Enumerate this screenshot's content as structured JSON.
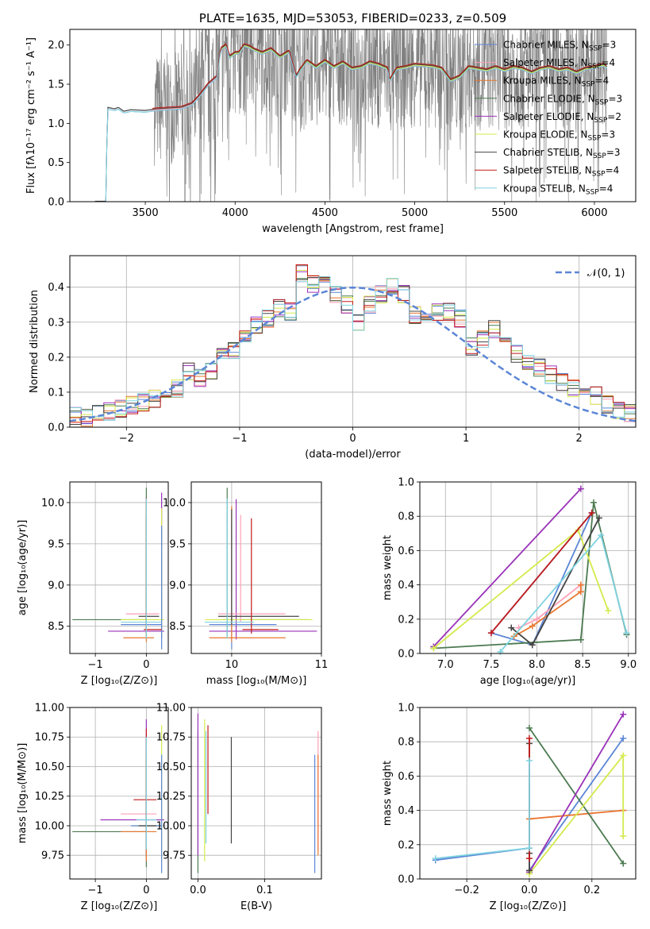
{
  "colors": {
    "chabrier_miles": "#5b86d6",
    "salpeter_miles": "#ff9fb4",
    "kroupa_miles": "#e8772e",
    "chabrier_elodie": "#4c7a50",
    "salpeter_elodie": "#9a32b8",
    "kroupa_elodie": "#d4ea4c",
    "chabrier_stelib": "#444444",
    "salpeter_stelib": "#c21a1a",
    "kroupa_stelib": "#7fd3e0",
    "spectrum": "#808080",
    "normal": "#5b86d6",
    "grid": "#b0b0b0"
  },
  "chart_data": [
    {
      "id": "spectrum",
      "type": "line",
      "title": "PLATE=1635, MJD=53053, FIBERID=0233, z=0.509",
      "xlabel": "wavelength [Angstrom, rest frame]",
      "ylabel": "Flux [fλ10⁻¹⁷ erg cm⁻² s⁻¹ A⁻¹]",
      "xlim": [
        3080,
        6230
      ],
      "ylim": [
        0,
        2.2
      ],
      "xticks": [
        "3500",
        "4000",
        "4500",
        "5000",
        "5500",
        "6000"
      ],
      "yticks": [
        "0.0",
        "0.5",
        "1.0",
        "1.5",
        "2.0"
      ],
      "grid": false,
      "legend_position": "upper-right",
      "legend": [
        {
          "label": "Chabrier MILES, N_SSP=3",
          "key": "chabrier_miles"
        },
        {
          "label": "Salpeter MILES, N_SSP=4",
          "key": "salpeter_miles"
        },
        {
          "label": "Kroupa MILES, N_SSP=4",
          "key": "kroupa_miles"
        },
        {
          "label": "Chabrier ELODIE, N_SSP=3",
          "key": "chabrier_elodie"
        },
        {
          "label": "Salpeter ELODIE, N_SSP=2",
          "key": "salpeter_elodie"
        },
        {
          "label": "Kroupa ELODIE, N_SSP=3",
          "key": "kroupa_elodie"
        },
        {
          "label": "Chabrier STELIB, N_SSP=3",
          "key": "chabrier_stelib"
        },
        {
          "label": "Salpeter STELIB, N_SSP=4",
          "key": "salpeter_stelib"
        },
        {
          "label": "Kroupa STELIB, N_SSP=4",
          "key": "kroupa_stelib"
        }
      ],
      "model_continuum": {
        "x": [
          3220,
          3280,
          3290,
          3330,
          3350,
          3380,
          3420,
          3500,
          3560,
          3700,
          3760,
          3800,
          3850,
          3900,
          3920,
          3950,
          3970,
          4000,
          4020,
          4050,
          4080,
          4100,
          4150,
          4200,
          4250,
          4300,
          4340,
          4360,
          4400,
          4450,
          4500,
          4550,
          4600,
          4650,
          4700,
          4750,
          4800,
          4850,
          4860,
          4900,
          4950,
          5000,
          5050,
          5100,
          5150,
          5200,
          5250,
          5300,
          5350,
          5400,
          5450,
          5500,
          5550,
          5600,
          5650,
          5700,
          5750,
          5800,
          5850,
          5900,
          5950,
          6000,
          6050,
          6070
        ],
        "y": [
          0,
          0,
          1.2,
          1.18,
          1.2,
          1.15,
          1.17,
          1.16,
          1.18,
          1.2,
          1.25,
          1.35,
          1.5,
          1.6,
          1.95,
          2.0,
          1.85,
          1.9,
          1.9,
          2.0,
          1.98,
          1.95,
          1.9,
          1.95,
          1.85,
          1.92,
          1.6,
          1.68,
          1.8,
          1.72,
          1.8,
          1.72,
          1.78,
          1.7,
          1.72,
          1.78,
          1.75,
          1.7,
          1.55,
          1.7,
          1.72,
          1.75,
          1.74,
          1.73,
          1.7,
          1.55,
          1.6,
          1.72,
          1.7,
          1.68,
          1.72,
          1.68,
          1.72,
          1.7,
          1.65,
          1.7,
          1.72,
          1.68,
          1.7,
          1.65,
          1.7,
          1.72,
          1.75,
          1.72
        ]
      }
    },
    {
      "id": "residuals",
      "type": "histogram",
      "xlabel": "(data-model)/error",
      "ylabel": "Normed distribution",
      "xlim": [
        -2.5,
        2.5
      ],
      "ylim": [
        0,
        0.49
      ],
      "xticks": [
        "−2",
        "−1",
        "0",
        "1",
        "2"
      ],
      "yticks": [
        "0.0",
        "0.1",
        "0.2",
        "0.3",
        "0.4"
      ],
      "grid": true,
      "legend_position": "upper-right",
      "normal_label": "𝒩(0, 1)",
      "bin_edges": [
        -2.5,
        -2.4,
        -2.3,
        -2.2,
        -2.1,
        -2.0,
        -1.9,
        -1.8,
        -1.7,
        -1.6,
        -1.5,
        -1.4,
        -1.3,
        -1.2,
        -1.1,
        -1.0,
        -0.9,
        -0.8,
        -0.7,
        -0.6,
        -0.5,
        -0.4,
        -0.3,
        -0.2,
        -0.1,
        0.0,
        0.1,
        0.2,
        0.3,
        0.4,
        0.5,
        0.6,
        0.7,
        0.8,
        0.9,
        1.0,
        1.1,
        1.2,
        1.3,
        1.4,
        1.5,
        1.6,
        1.7,
        1.8,
        1.9,
        2.0,
        2.1,
        2.2,
        2.3,
        2.4,
        2.5
      ],
      "base_density": [
        0.033,
        0.028,
        0.037,
        0.045,
        0.053,
        0.063,
        0.071,
        0.081,
        0.11,
        0.11,
        0.16,
        0.14,
        0.16,
        0.2,
        0.22,
        0.26,
        0.29,
        0.31,
        0.34,
        0.33,
        0.44,
        0.41,
        0.41,
        0.38,
        0.35,
        0.3,
        0.35,
        0.38,
        0.4,
        0.38,
        0.32,
        0.33,
        0.33,
        0.33,
        0.31,
        0.23,
        0.25,
        0.28,
        0.25,
        0.21,
        0.19,
        0.17,
        0.15,
        0.13,
        0.11,
        0.085,
        0.09,
        0.065,
        0.05,
        0.04
      ]
    },
    {
      "id": "age_vs_Z",
      "type": "scatter",
      "xlabel": "Z [log₁₀(Z/Z⊙)]",
      "ylabel": "age  [log₁₀(age/yr)]",
      "xlim": [
        -1.5,
        0.43
      ],
      "ylim": [
        8.17,
        10.25
      ],
      "xticks": [
        "−1",
        "0"
      ],
      "yticks": [
        "8.5",
        "9.0",
        "9.5",
        "10.0"
      ],
      "grid": true,
      "points": [
        {
          "key": "chabrier_elodie",
          "x": 0.0,
          "y": 8.58,
          "xerr": [
            1.45,
            0.0
          ],
          "yerr": [
            0.2,
            1.6
          ]
        },
        {
          "key": "salpeter_elodie",
          "x": 0.3,
          "y": 8.44,
          "xerr": [
            1.05,
            0.05
          ],
          "yerr": [
            0.08,
            1.68
          ]
        },
        {
          "key": "kroupa_elodie",
          "x": 0.3,
          "y": 8.58,
          "xerr": [
            0.8,
            0.05
          ],
          "yerr": [
            0.2,
            1.35
          ]
        },
        {
          "key": "chabrier_miles",
          "x": 0.3,
          "y": 8.52,
          "xerr": [
            0.8,
            0.0
          ],
          "yerr": [
            0.3,
            1.2
          ]
        },
        {
          "key": "salpeter_miles",
          "x": 0.0,
          "y": 8.65,
          "xerr": [
            0.4,
            0.25
          ],
          "yerr": [
            0.1,
            1.2
          ]
        },
        {
          "key": "kroupa_miles",
          "x": 0.0,
          "y": 8.36,
          "xerr": [
            0.45,
            0.15
          ],
          "yerr": [
            0.05,
            1.6
          ]
        },
        {
          "key": "chabrier_stelib",
          "x": 0.0,
          "y": 8.62,
          "xerr": [
            0.15,
            0.25
          ],
          "yerr": [
            0.1,
            1.2
          ]
        },
        {
          "key": "salpeter_stelib",
          "x": 0.0,
          "y": 8.46,
          "xerr": [
            0.05,
            0.3
          ],
          "yerr": [
            0.05,
            1.6
          ]
        },
        {
          "key": "kroupa_stelib",
          "x": 0.0,
          "y": 8.55,
          "xerr": [
            0.5,
            0.3
          ],
          "yerr": [
            0.2,
            1.5
          ]
        }
      ]
    },
    {
      "id": "age_vs_mass",
      "type": "scatter",
      "xlabel": "mass [log₁₀(M/M⊙)]",
      "ylabel": "",
      "xlim": [
        9.55,
        11.0
      ],
      "ylim": [
        8.17,
        10.25
      ],
      "xticks": [
        "10",
        "11"
      ],
      "yticks": [
        "8.5",
        "9.0",
        "9.5",
        "10.0"
      ],
      "grid": true,
      "points": [
        {
          "key": "chabrier_elodie",
          "x": 9.95,
          "y": 8.58,
          "xerr": [
            0.05,
            0.9
          ],
          "yerr": [
            0.2,
            1.6
          ]
        },
        {
          "key": "salpeter_elodie",
          "x": 10.05,
          "y": 8.44,
          "xerr": [
            0.3,
            0.9
          ],
          "yerr": [
            0.1,
            1.6
          ]
        },
        {
          "key": "kroupa_elodie",
          "x": 10.0,
          "y": 8.58,
          "xerr": [
            0.3,
            0.9
          ],
          "yerr": [
            0.2,
            1.3
          ]
        },
        {
          "key": "chabrier_miles",
          "x": 10.0,
          "y": 8.52,
          "xerr": [
            0.25,
            0.5
          ],
          "yerr": [
            0.3,
            1.25
          ]
        },
        {
          "key": "salpeter_miles",
          "x": 10.1,
          "y": 8.65,
          "xerr": [
            0.25,
            0.5
          ],
          "yerr": [
            0.1,
            1.2
          ]
        },
        {
          "key": "kroupa_miles",
          "x": 10.0,
          "y": 8.36,
          "xerr": [
            0.25,
            0.6
          ],
          "yerr": [
            0.05,
            1.6
          ]
        },
        {
          "key": "chabrier_stelib",
          "x": 10.0,
          "y": 8.62,
          "xerr": [
            0.15,
            0.75
          ],
          "yerr": [
            0.1,
            1.3
          ]
        },
        {
          "key": "salpeter_stelib",
          "x": 10.22,
          "y": 8.46,
          "xerr": [
            0.1,
            0.3
          ],
          "yerr": [
            0.05,
            1.35
          ]
        },
        {
          "key": "kroupa_stelib",
          "x": 9.95,
          "y": 8.55,
          "xerr": [
            0.25,
            0.3
          ],
          "yerr": [
            0.2,
            1.5
          ]
        }
      ]
    },
    {
      "id": "weight_vs_age",
      "type": "line",
      "xlabel": "age  [log₁₀(age/yr)]",
      "ylabel": "mass weight",
      "xlim": [
        6.72,
        9.08
      ],
      "ylim": [
        0,
        1.0
      ],
      "xticks": [
        "7.0",
        "7.5",
        "8.0",
        "8.5",
        "9.0"
      ],
      "yticks": [
        "0.0",
        "0.2",
        "0.4",
        "0.6",
        "0.8",
        "1.0"
      ],
      "grid": true,
      "series": [
        {
          "key": "chabrier_miles",
          "x": [
            8.6,
            7.5,
            7.95,
            8.6
          ],
          "y": [
            0.82,
            0.12,
            0.05,
            0.82
          ]
        },
        {
          "key": "salpeter_miles",
          "x": [
            7.8,
            8.0,
            8.48,
            8.48
          ],
          "y": [
            0.15,
            0.2,
            0.4,
            0.36
          ]
        },
        {
          "key": "kroupa_miles",
          "x": [
            7.75,
            7.95,
            8.48,
            8.48
          ],
          "y": [
            0.1,
            0.16,
            0.36,
            0.4
          ]
        },
        {
          "key": "chabrier_elodie",
          "x": [
            6.87,
            8.48,
            8.62,
            8.98
          ],
          "y": [
            0.03,
            0.08,
            0.88,
            0.11
          ]
        },
        {
          "key": "salpeter_elodie",
          "x": [
            6.87,
            8.48
          ],
          "y": [
            0.04,
            0.96
          ]
        },
        {
          "key": "kroupa_elodie",
          "x": [
            6.87,
            8.45,
            8.78
          ],
          "y": [
            0.03,
            0.72,
            0.25
          ]
        },
        {
          "key": "chabrier_stelib",
          "x": [
            7.72,
            7.95,
            8.68
          ],
          "y": [
            0.15,
            0.05,
            0.79
          ]
        },
        {
          "key": "salpeter_stelib",
          "x": [
            7.5,
            8.6
          ],
          "y": [
            0.12,
            0.82
          ]
        },
        {
          "key": "kroupa_stelib",
          "x": [
            7.6,
            8.7,
            8.98
          ],
          "y": [
            0.01,
            0.69,
            0.12
          ]
        }
      ]
    },
    {
      "id": "mass_vs_Z",
      "type": "scatter",
      "xlabel": "Z [log₁₀(Z/Z⊙)]",
      "ylabel": "mass [log₁₀(M/M⊙)]",
      "xlim": [
        -1.5,
        0.43
      ],
      "ylim": [
        9.55,
        11.0
      ],
      "xticks": [
        "−1",
        "0"
      ],
      "yticks": [
        "9.75",
        "10.00",
        "10.25",
        "10.50",
        "10.75",
        "11.00"
      ],
      "grid": true,
      "points": [
        {
          "key": "chabrier_elodie",
          "x": 0.0,
          "y": 9.95,
          "xerr": [
            1.45,
            0.0
          ],
          "yerr": [
            0.3,
            0.55
          ]
        },
        {
          "key": "salpeter_elodie",
          "x": 0.0,
          "y": 10.05,
          "xerr": [
            0.9,
            0.35
          ],
          "yerr": [
            0.3,
            0.85
          ]
        },
        {
          "key": "kroupa_elodie",
          "x": 0.3,
          "y": 10.0,
          "xerr": [
            0.6,
            0.0
          ],
          "yerr": [
            0.3,
            0.85
          ]
        },
        {
          "key": "chabrier_miles",
          "x": 0.3,
          "y": 10.0,
          "xerr": [
            0.6,
            0.0
          ],
          "yerr": [
            0.4,
            0.6
          ]
        },
        {
          "key": "salpeter_miles",
          "x": 0.0,
          "y": 10.1,
          "xerr": [
            0.5,
            0.2
          ],
          "yerr": [
            0.3,
            0.55
          ]
        },
        {
          "key": "kroupa_miles",
          "x": 0.0,
          "y": 9.95,
          "xerr": [
            0.5,
            0.2
          ],
          "yerr": [
            0.25,
            0.6
          ]
        },
        {
          "key": "chabrier_stelib",
          "x": 0.0,
          "y": 10.0,
          "xerr": [
            0.15,
            0.2
          ],
          "yerr": [
            0.2,
            0.75
          ]
        },
        {
          "key": "salpeter_stelib",
          "x": 0.0,
          "y": 10.22,
          "xerr": [
            0.25,
            0.2
          ],
          "yerr": [
            0.15,
            0.6
          ]
        },
        {
          "key": "kroupa_stelib",
          "x": 0.0,
          "y": 10.05,
          "xerr": [
            0.2,
            0.2
          ],
          "yerr": [
            0.25,
            0.7
          ]
        }
      ]
    },
    {
      "id": "mass_vs_ebv",
      "type": "scatter",
      "xlabel": "E(B-V)",
      "ylabel": "",
      "xlim": [
        -0.01,
        0.185
      ],
      "ylim": [
        9.55,
        11.0
      ],
      "xticks": [
        "0.0",
        "0.1"
      ],
      "yticks": [
        "9.75",
        "10.00",
        "10.25",
        "10.50",
        "10.75",
        "11.00"
      ],
      "grid": true,
      "vlines": [
        {
          "key": "chabrier_elodie",
          "x": 0.0,
          "y0": 9.6,
          "y1": 10.8
        },
        {
          "key": "salpeter_elodie",
          "x": 0.0,
          "y0": 9.75,
          "y1": 10.95
        },
        {
          "key": "kroupa_elodie",
          "x": 0.01,
          "y0": 9.7,
          "y1": 10.9
        },
        {
          "key": "chabrier_miles",
          "x": 0.175,
          "y0": 9.6,
          "y1": 10.6
        },
        {
          "key": "salpeter_miles",
          "x": 0.18,
          "y0": 9.8,
          "y1": 10.8
        },
        {
          "key": "kroupa_miles",
          "x": 0.18,
          "y0": 9.75,
          "y1": 10.6
        },
        {
          "key": "chabrier_stelib",
          "x": 0.05,
          "y0": 9.85,
          "y1": 10.75
        },
        {
          "key": "salpeter_stelib",
          "x": 0.015,
          "y0": 10.1,
          "y1": 10.85
        },
        {
          "key": "kroupa_stelib",
          "x": 0.012,
          "y0": 9.85,
          "y1": 10.8
        }
      ]
    },
    {
      "id": "weight_vs_Z",
      "type": "line",
      "xlabel": "Z [log₁₀(Z/Z⊙)]",
      "ylabel": "mass weight",
      "xlim": [
        -0.35,
        0.34
      ],
      "ylim": [
        0,
        1.0
      ],
      "xticks": [
        "−0.2",
        "0.0",
        "0.2"
      ],
      "yticks": [
        "0.0",
        "0.2",
        "0.4",
        "0.6",
        "0.8",
        "1.0"
      ],
      "grid": true,
      "series": [
        {
          "key": "chabrier_miles",
          "x": [
            -0.3,
            0.0,
            0.0,
            0.3
          ],
          "y": [
            0.11,
            0.18,
            0.05,
            0.82
          ]
        },
        {
          "key": "salpeter_miles",
          "x": [
            0.0,
            0.3
          ],
          "y": [
            0.35,
            0.4
          ]
        },
        {
          "key": "kroupa_miles",
          "x": [
            0.0,
            0.3
          ],
          "y": [
            0.35,
            0.4
          ]
        },
        {
          "key": "chabrier_elodie",
          "x": [
            0.0,
            0.3
          ],
          "y": [
            0.88,
            0.09
          ]
        },
        {
          "key": "salpeter_elodie",
          "x": [
            0.0,
            0.3
          ],
          "y": [
            0.04,
            0.96
          ]
        },
        {
          "key": "kroupa_elodie",
          "x": [
            0.0,
            0.3,
            0.3
          ],
          "y": [
            0.03,
            0.72,
            0.25
          ]
        },
        {
          "key": "chabrier_stelib",
          "x": [
            0.0,
            0.0,
            0.0
          ],
          "y": [
            0.79,
            0.05,
            0.15
          ]
        },
        {
          "key": "salpeter_stelib",
          "x": [
            0.0,
            0.0
          ],
          "y": [
            0.12,
            0.82
          ]
        },
        {
          "key": "kroupa_stelib",
          "x": [
            -0.3,
            0.0,
            0.0
          ],
          "y": [
            0.12,
            0.18,
            0.69
          ]
        }
      ]
    }
  ]
}
